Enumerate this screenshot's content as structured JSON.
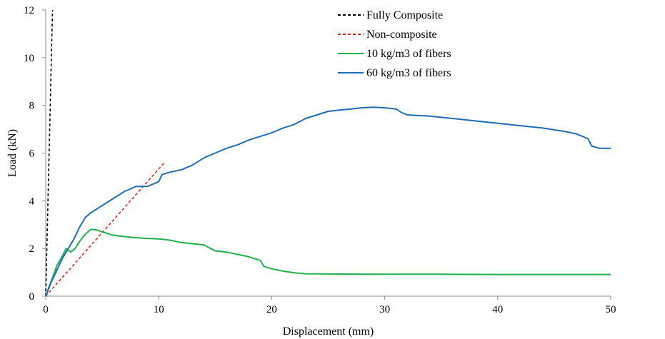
{
  "chart_data": {
    "type": "line",
    "title": "",
    "xlabel": "Displacement (mm)",
    "ylabel": "Load (kN)",
    "xlim": [
      0,
      50
    ],
    "ylim": [
      0,
      12
    ],
    "xticks": [
      0,
      10,
      20,
      30,
      40,
      50
    ],
    "yticks": [
      0,
      2,
      4,
      6,
      8,
      10,
      12
    ],
    "grid": false,
    "legend_position": "top-center",
    "series": [
      {
        "name": "Fully Composite",
        "color": "#000000",
        "dash": "dashed",
        "points": [
          [
            0,
            0
          ],
          [
            0.6,
            12
          ]
        ]
      },
      {
        "name": "Non-composite",
        "color": "#e8231e",
        "dash": "dashed",
        "points": [
          [
            0,
            0
          ],
          [
            10.5,
            5.6
          ]
        ]
      },
      {
        "name": "10 kg/m3 of fibers",
        "color": "#1fb24a",
        "dash": "solid",
        "points": [
          [
            0,
            0
          ],
          [
            0.3,
            0.4
          ],
          [
            0.7,
            0.9
          ],
          [
            1.0,
            1.3
          ],
          [
            1.5,
            1.7
          ],
          [
            1.8,
            2.0
          ],
          [
            2.2,
            1.85
          ],
          [
            2.6,
            2.0
          ],
          [
            3.0,
            2.3
          ],
          [
            3.5,
            2.6
          ],
          [
            4.0,
            2.8
          ],
          [
            4.5,
            2.78
          ],
          [
            5.0,
            2.7
          ],
          [
            6.0,
            2.55
          ],
          [
            7.0,
            2.5
          ],
          [
            8.0,
            2.45
          ],
          [
            9.0,
            2.42
          ],
          [
            10.0,
            2.4
          ],
          [
            11.0,
            2.35
          ],
          [
            12.0,
            2.25
          ],
          [
            13.0,
            2.2
          ],
          [
            14.0,
            2.15
          ],
          [
            15.0,
            1.9
          ],
          [
            16.0,
            1.85
          ],
          [
            17.0,
            1.75
          ],
          [
            18.0,
            1.65
          ],
          [
            19.0,
            1.5
          ],
          [
            19.3,
            1.25
          ],
          [
            20.0,
            1.15
          ],
          [
            21.0,
            1.05
          ],
          [
            22.0,
            0.98
          ],
          [
            23.0,
            0.94
          ],
          [
            25.0,
            0.93
          ],
          [
            30.0,
            0.92
          ],
          [
            35.0,
            0.92
          ],
          [
            40.0,
            0.91
          ],
          [
            45.0,
            0.91
          ],
          [
            50.0,
            0.91
          ]
        ]
      },
      {
        "name": "60 kg/m3 of fibers",
        "color": "#1f6db5",
        "dash": "solid",
        "points": [
          [
            0,
            0
          ],
          [
            0.5,
            0.6
          ],
          [
            1.0,
            1.1
          ],
          [
            1.5,
            1.6
          ],
          [
            2.0,
            2.0
          ],
          [
            2.5,
            2.4
          ],
          [
            3.0,
            2.9
          ],
          [
            3.5,
            3.3
          ],
          [
            4.0,
            3.5
          ],
          [
            5.0,
            3.8
          ],
          [
            6.0,
            4.1
          ],
          [
            7.0,
            4.4
          ],
          [
            8.0,
            4.6
          ],
          [
            9.0,
            4.6
          ],
          [
            10.0,
            4.8
          ],
          [
            10.3,
            5.1
          ],
          [
            11.0,
            5.2
          ],
          [
            12.0,
            5.3
          ],
          [
            13.0,
            5.5
          ],
          [
            14.0,
            5.8
          ],
          [
            15.0,
            6.0
          ],
          [
            16.0,
            6.2
          ],
          [
            17.0,
            6.35
          ],
          [
            18.0,
            6.55
          ],
          [
            19.0,
            6.7
          ],
          [
            20.0,
            6.85
          ],
          [
            21.0,
            7.05
          ],
          [
            22.0,
            7.2
          ],
          [
            23.0,
            7.45
          ],
          [
            24.0,
            7.6
          ],
          [
            25.0,
            7.75
          ],
          [
            26.0,
            7.8
          ],
          [
            27.0,
            7.85
          ],
          [
            28.0,
            7.9
          ],
          [
            29.0,
            7.92
          ],
          [
            30.0,
            7.9
          ],
          [
            31.0,
            7.85
          ],
          [
            31.5,
            7.7
          ],
          [
            32.0,
            7.6
          ],
          [
            34.0,
            7.55
          ],
          [
            36.0,
            7.45
          ],
          [
            38.0,
            7.35
          ],
          [
            40.0,
            7.25
          ],
          [
            42.0,
            7.15
          ],
          [
            44.0,
            7.05
          ],
          [
            46.0,
            6.9
          ],
          [
            47.0,
            6.8
          ],
          [
            48.0,
            6.6
          ],
          [
            48.3,
            6.3
          ],
          [
            49.0,
            6.2
          ],
          [
            50.0,
            6.2
          ]
        ]
      }
    ]
  }
}
